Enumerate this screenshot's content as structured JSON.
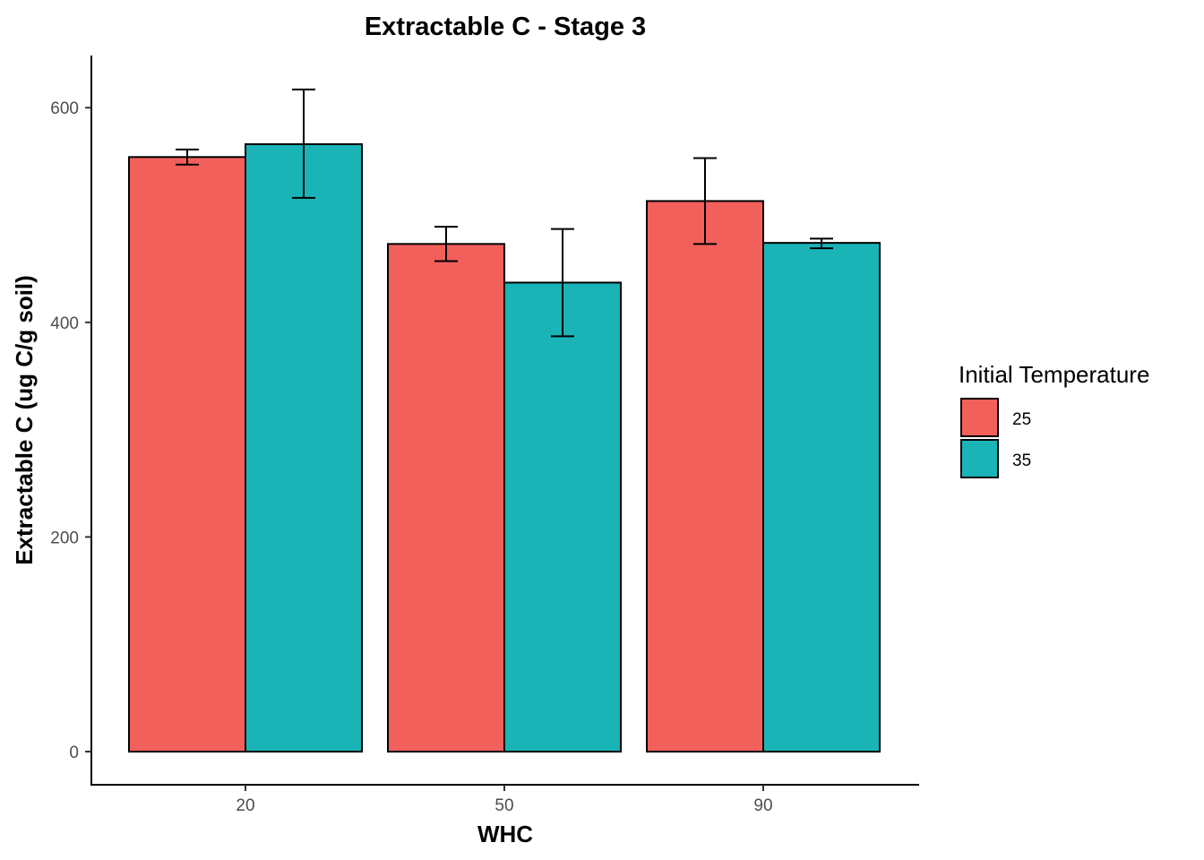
{
  "chart_data": {
    "type": "bar",
    "title": "Extractable C - Stage 3",
    "xlabel": "WHC",
    "ylabel": "Extractable C (ug C/g soil)",
    "categories": [
      "20",
      "50",
      "90"
    ],
    "ylim": [
      -30,
      648
    ],
    "yticks": [
      0,
      200,
      400,
      600
    ],
    "legend": {
      "title": "Initial Temperature",
      "placement": "right"
    },
    "series": [
      {
        "name": "25",
        "color": "#F2605C",
        "values": [
          554,
          473,
          513
        ],
        "error_low": [
          547,
          457,
          473
        ],
        "error_high": [
          561,
          489,
          553
        ]
      },
      {
        "name": "35",
        "color": "#1AB4B7",
        "values": [
          566,
          437,
          474
        ],
        "error_low": [
          516,
          387,
          469
        ],
        "error_high": [
          617,
          487,
          478
        ]
      }
    ],
    "grid": false
  }
}
